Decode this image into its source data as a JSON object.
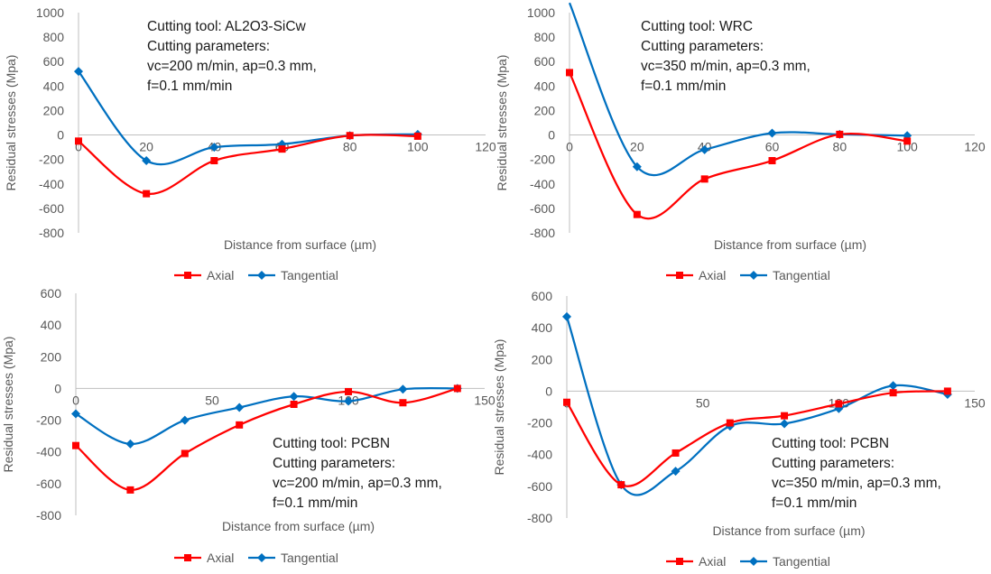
{
  "chart_data": [
    {
      "type": "line",
      "xlabel": "Distance from surface (µm)",
      "ylabel": "Residual stresses (Mpa)",
      "xlim": [
        0,
        120
      ],
      "xticks": [
        0,
        20,
        40,
        60,
        80,
        100,
        120
      ],
      "ylim": [
        -800,
        1000
      ],
      "yticks": [
        -800,
        -600,
        -400,
        -200,
        0,
        200,
        400,
        600,
        800,
        1000
      ],
      "annotation": [
        "Cutting tool: AL2O3-SiCw",
        "Cutting parameters:",
        "vc=200 m/min, ap=0.3 mm,",
        "f=0.1 mm/min"
      ],
      "legend_position": "bottom",
      "series": [
        {
          "name": "Axial",
          "color": "#ff0000",
          "marker": "square",
          "x": [
            0,
            20,
            40,
            60,
            80,
            100
          ],
          "y": [
            -50,
            -480,
            -210,
            -115,
            -5,
            -10
          ]
        },
        {
          "name": "Tangential",
          "color": "#0070c0",
          "marker": "diamond",
          "x": [
            0,
            20,
            40,
            60,
            80,
            100
          ],
          "y": [
            520,
            -210,
            -100,
            -75,
            -5,
            5
          ]
        }
      ]
    },
    {
      "type": "line",
      "xlabel": "Distance from surface (µm)",
      "ylabel": "Residual stresses (Mpa)",
      "xlim": [
        0,
        120
      ],
      "xticks": [
        0,
        20,
        40,
        60,
        80,
        100,
        120
      ],
      "ylim": [
        -800,
        1000
      ],
      "yticks": [
        -800,
        -600,
        -400,
        -200,
        0,
        200,
        400,
        600,
        800,
        1000
      ],
      "annotation": [
        "Cutting tool: WRC",
        "Cutting parameters:",
        "vc=350 m/min, ap=0.3 mm,",
        "f=0.1 mm/min"
      ],
      "legend_position": "bottom",
      "series": [
        {
          "name": "Axial",
          "color": "#ff0000",
          "marker": "square",
          "x": [
            0,
            20,
            40,
            60,
            80,
            100
          ],
          "y": [
            510,
            -650,
            -360,
            -210,
            5,
            -50
          ]
        },
        {
          "name": "Tangential",
          "color": "#0070c0",
          "marker": "diamond",
          "x": [
            0,
            20,
            40,
            60,
            80,
            100
          ],
          "y": [
            1080,
            -260,
            -120,
            15,
            5,
            -5
          ]
        }
      ]
    },
    {
      "type": "line",
      "xlabel": "Distance from surface (µm)",
      "ylabel": "Residual stresses (Mpa)",
      "xlim": [
        0,
        150
      ],
      "xticks": [
        0,
        50,
        100,
        150
      ],
      "ylim": [
        -800,
        600
      ],
      "yticks": [
        -800,
        -600,
        -400,
        -200,
        0,
        200,
        400,
        600
      ],
      "annotation": [
        "Cutting tool: PCBN",
        "Cutting parameters:",
        "vc=200 m/min, ap=0.3 mm,",
        "f=0.1 mm/min"
      ],
      "legend_position": "bottom",
      "series": [
        {
          "name": "Axial",
          "color": "#ff0000",
          "marker": "square",
          "x": [
            0,
            20,
            40,
            60,
            80,
            100,
            120,
            140
          ],
          "y": [
            -360,
            -640,
            -410,
            -230,
            -100,
            -20,
            -90,
            0
          ]
        },
        {
          "name": "Tangential",
          "color": "#0070c0",
          "marker": "diamond",
          "x": [
            0,
            20,
            40,
            60,
            80,
            100,
            120,
            140
          ],
          "y": [
            -160,
            -350,
            -200,
            -120,
            -50,
            -80,
            -5,
            0
          ]
        }
      ]
    },
    {
      "type": "line",
      "xlabel": "Distance from surface (µm)",
      "ylabel": "Residual stresses (Mpa)",
      "xlim": [
        0,
        150
      ],
      "xticks": [
        0,
        50,
        100,
        150
      ],
      "ylim": [
        -800,
        600
      ],
      "yticks": [
        -800,
        -600,
        -400,
        -200,
        0,
        200,
        400,
        600
      ],
      "annotation": [
        "Cutting tool: PCBN",
        "Cutting parameters:",
        "vc=350 m/min, ap=0.3 mm,",
        "f=0.1 mm/min"
      ],
      "legend_position": "bottom",
      "series": [
        {
          "name": "Axial",
          "color": "#ff0000",
          "marker": "square",
          "x": [
            0,
            20,
            40,
            60,
            80,
            100,
            120,
            140
          ],
          "y": [
            -70,
            -590,
            -390,
            -200,
            -155,
            -80,
            -10,
            0
          ]
        },
        {
          "name": "Tangential",
          "color": "#0070c0",
          "marker": "diamond",
          "x": [
            0,
            20,
            40,
            60,
            80,
            100,
            120,
            140
          ],
          "y": [
            470,
            -590,
            -505,
            -220,
            -205,
            -110,
            35,
            -20
          ]
        }
      ]
    }
  ]
}
